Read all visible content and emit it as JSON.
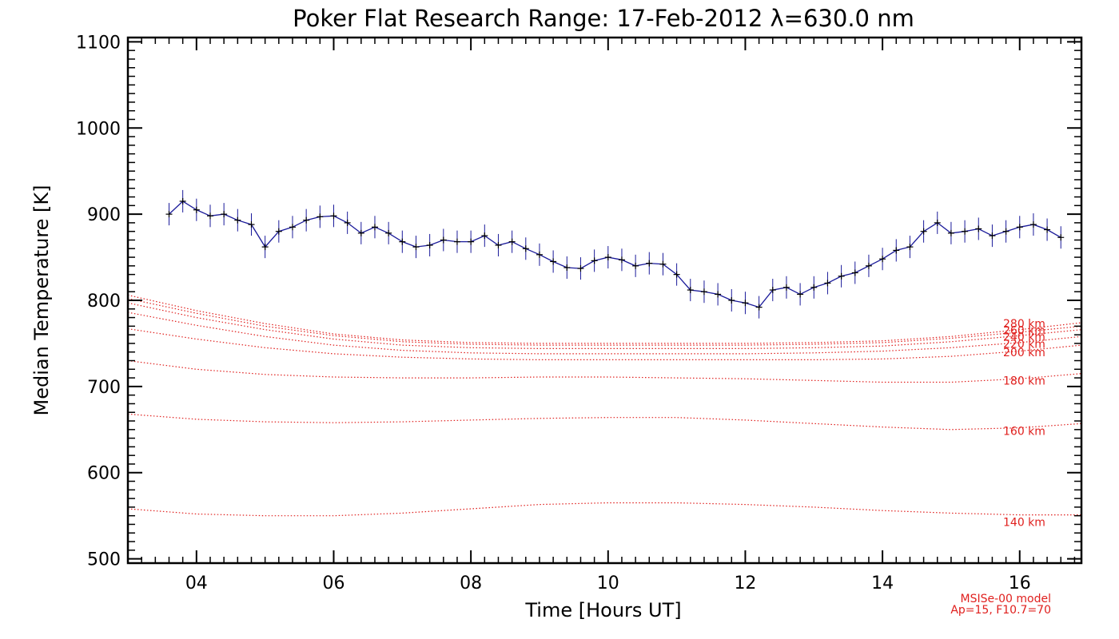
{
  "chart_data": {
    "type": "line",
    "title": "Poker Flat Research Range: 17-Feb-2012 λ=630.0 nm",
    "xlabel": "Time [Hours UT]",
    "ylabel": "Median Temperature [K]",
    "xlim": [
      3.0,
      16.9
    ],
    "ylim": [
      495,
      1105
    ],
    "xticks": [
      4,
      6,
      8,
      10,
      12,
      14,
      16
    ],
    "xtick_labels": [
      "04",
      "06",
      "08",
      "10",
      "12",
      "14",
      "16"
    ],
    "yticks": [
      500,
      600,
      700,
      800,
      900,
      1000,
      1100
    ],
    "ytick_labels": [
      "500",
      "600",
      "700",
      "800",
      "900",
      "1000",
      "1100"
    ],
    "grid": false,
    "measured": {
      "color": "#1a1a9a",
      "marker_color": "#000000",
      "error_bar": 13,
      "x": [
        3.6,
        3.8,
        4.0,
        4.2,
        4.4,
        4.6,
        4.8,
        5.0,
        5.2,
        5.4,
        5.6,
        5.8,
        6.0,
        6.2,
        6.4,
        6.6,
        6.8,
        7.0,
        7.2,
        7.4,
        7.6,
        7.8,
        8.0,
        8.2,
        8.4,
        8.6,
        8.8,
        9.0,
        9.2,
        9.4,
        9.6,
        9.8,
        10.0,
        10.2,
        10.4,
        10.6,
        10.8,
        11.0,
        11.2,
        11.4,
        11.6,
        11.8,
        12.0,
        12.2,
        12.4,
        12.6,
        12.8,
        13.0,
        13.2,
        13.4,
        13.6,
        13.8,
        14.0,
        14.2,
        14.4,
        14.6,
        14.8,
        15.0,
        15.2,
        15.4,
        15.6,
        15.8,
        16.0,
        16.2,
        16.4,
        16.6
      ],
      "y": [
        900,
        915,
        905,
        898,
        900,
        893,
        888,
        862,
        880,
        885,
        893,
        897,
        898,
        890,
        878,
        885,
        878,
        868,
        862,
        864,
        870,
        868,
        868,
        875,
        864,
        868,
        860,
        853,
        845,
        838,
        837,
        846,
        850,
        847,
        840,
        843,
        842,
        830,
        812,
        810,
        807,
        800,
        797,
        792,
        812,
        815,
        807,
        815,
        820,
        828,
        832,
        840,
        848,
        858,
        862,
        880,
        890,
        878,
        880,
        883,
        875,
        880,
        885,
        888,
        882,
        873
      ]
    },
    "model_series": [
      {
        "name": "140 km",
        "x": [
          3.0,
          4.0,
          5.0,
          6.0,
          7.0,
          8.0,
          9.0,
          10.0,
          11.0,
          12.0,
          13.0,
          14.0,
          15.0,
          16.0,
          16.9
        ],
        "y": [
          558,
          552,
          550,
          550,
          553,
          558,
          563,
          565,
          565,
          563,
          560,
          556,
          553,
          551,
          551
        ]
      },
      {
        "name": "160 km",
        "x": [
          3.0,
          4.0,
          5.0,
          6.0,
          7.0,
          8.0,
          9.0,
          10.0,
          11.0,
          12.0,
          13.0,
          14.0,
          15.0,
          16.0,
          16.9
        ],
        "y": [
          668,
          662,
          659,
          658,
          659,
          661,
          663,
          664,
          664,
          661,
          657,
          653,
          650,
          652,
          657
        ]
      },
      {
        "name": "180 km",
        "x": [
          3.0,
          4.0,
          5.0,
          6.0,
          7.0,
          8.0,
          9.0,
          10.0,
          11.0,
          12.0,
          13.0,
          14.0,
          15.0,
          16.0,
          16.9
        ],
        "y": [
          730,
          720,
          714,
          711,
          710,
          710,
          711,
          711,
          710,
          709,
          707,
          705,
          705,
          709,
          715
        ]
      },
      {
        "name": "200 km",
        "x": [
          3.0,
          4.0,
          5.0,
          6.0,
          7.0,
          8.0,
          9.0,
          10.0,
          11.0,
          12.0,
          13.0,
          14.0,
          15.0,
          16.0,
          16.9
        ],
        "y": [
          767,
          755,
          745,
          738,
          734,
          732,
          731,
          731,
          731,
          731,
          731,
          732,
          735,
          741,
          748
        ]
      },
      {
        "name": "220 km",
        "x": [
          3.0,
          4.0,
          5.0,
          6.0,
          7.0,
          8.0,
          9.0,
          10.0,
          11.0,
          12.0,
          13.0,
          14.0,
          15.0,
          16.0,
          16.9
        ],
        "y": [
          786,
          771,
          758,
          748,
          742,
          739,
          738,
          738,
          738,
          738,
          739,
          741,
          745,
          751,
          758
        ]
      },
      {
        "name": "240 km",
        "x": [
          3.0,
          4.0,
          5.0,
          6.0,
          7.0,
          8.0,
          9.0,
          10.0,
          11.0,
          12.0,
          13.0,
          14.0,
          15.0,
          16.0,
          16.9
        ],
        "y": [
          797,
          780,
          766,
          755,
          748,
          745,
          744,
          744,
          744,
          744,
          745,
          747,
          752,
          759,
          766
        ]
      },
      {
        "name": "260 km",
        "x": [
          3.0,
          4.0,
          5.0,
          6.0,
          7.0,
          8.0,
          9.0,
          10.0,
          11.0,
          12.0,
          13.0,
          14.0,
          15.0,
          16.0,
          16.9
        ],
        "y": [
          802,
          785,
          770,
          759,
          752,
          749,
          748,
          748,
          748,
          748,
          749,
          751,
          756,
          763,
          770
        ]
      },
      {
        "name": "280 km",
        "x": [
          3.0,
          4.0,
          5.0,
          6.0,
          7.0,
          8.0,
          9.0,
          10.0,
          11.0,
          12.0,
          13.0,
          14.0,
          15.0,
          16.0,
          16.9
        ],
        "y": [
          806,
          788,
          773,
          761,
          754,
          751,
          750,
          750,
          750,
          750,
          751,
          753,
          758,
          766,
          774
        ]
      }
    ],
    "model_color": "#e0201e",
    "model_note_line1": "MSISe-00 model",
    "model_note_line2": "Ap=15, F10.7=70"
  }
}
